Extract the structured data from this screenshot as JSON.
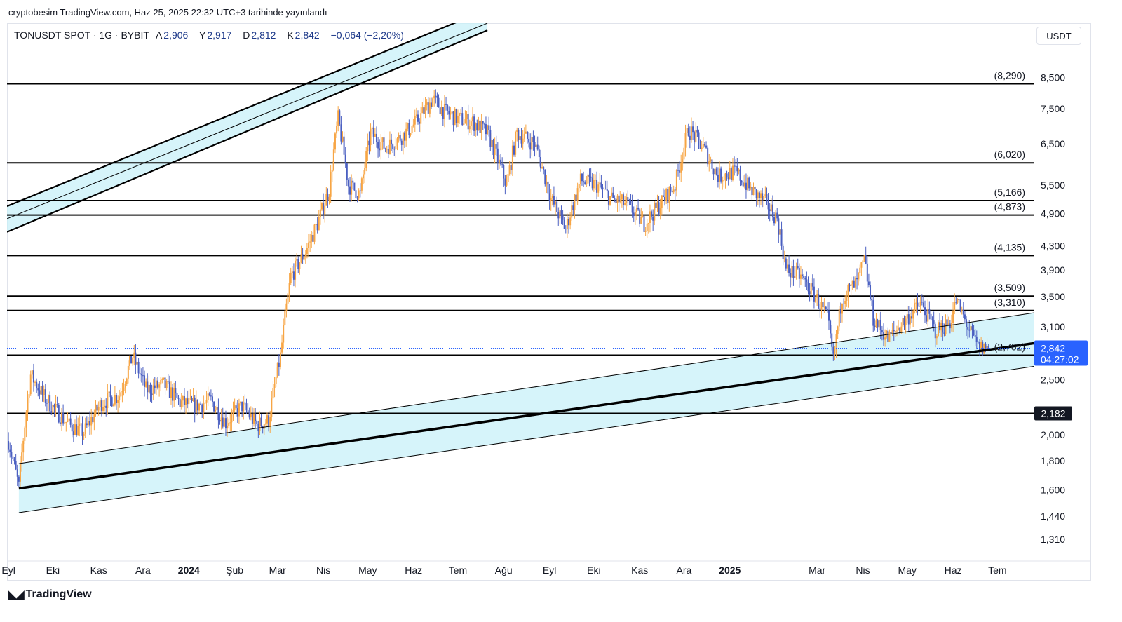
{
  "published": "cryptobesim TradingView.com, Haz 25, 2025 22:32 UTC+3 tarihinde yayınlandı",
  "header": {
    "symbol": "TONUSDT SPOT · 1G · BYBIT",
    "open_label": "A",
    "open": "2,906",
    "high_label": "Y",
    "high": "2,917",
    "low_label": "D",
    "low": "2,812",
    "close_label": "K",
    "close": "2,842",
    "change": "−0,064 (−2,20%)"
  },
  "currency": "USDT",
  "footer": {
    "brand": "TradingView"
  },
  "colors": {
    "up": "#f7a544",
    "down": "#4a5fc1",
    "channel": "#c8f0f8",
    "level": "#000000",
    "price_tag": "#2962ff"
  },
  "chart_data": {
    "type": "candlestick",
    "symbol": "TONUSDT",
    "y_scale": "log",
    "ylim": [
      1.2,
      10.6
    ],
    "y_ticks": [
      "8,500",
      "7,500",
      "6,500",
      "5,500",
      "4,900",
      "4,300",
      "3,900",
      "3,500",
      "3,100",
      "2,500",
      "2,000",
      "1,800",
      "1,600",
      "1,440",
      "1,310"
    ],
    "y_tick_values": [
      8.5,
      7.5,
      6.5,
      5.5,
      4.9,
      4.3,
      3.9,
      3.5,
      3.1,
      2.5,
      2.0,
      1.8,
      1.6,
      1.44,
      1.31
    ],
    "x_ticks": [
      "Eyl",
      "Eki",
      "Kas",
      "Ara",
      "2024",
      "Şub",
      "Mar",
      "Nis",
      "May",
      "Haz",
      "Tem",
      "Ağu",
      "Eyl",
      "Eki",
      "Kas",
      "Ara",
      "2025",
      "Mar",
      "Nis",
      "May",
      "Haz",
      "Tem"
    ],
    "x_tick_dates": [
      "2023-09-01",
      "2023-10-01",
      "2023-11-01",
      "2023-12-01",
      "2024-01-01",
      "2024-02-01",
      "2024-03-01",
      "2024-04-01",
      "2024-05-01",
      "2024-06-01",
      "2024-07-01",
      "2024-08-01",
      "2024-09-01",
      "2024-10-01",
      "2024-11-01",
      "2024-12-01",
      "2025-01-01",
      "2025-03-01",
      "2025-04-01",
      "2025-05-01",
      "2025-06-01",
      "2025-07-01"
    ],
    "x_range": [
      "2023-08-31",
      "2025-07-26"
    ],
    "levels": [
      {
        "label": "(8,290)",
        "value": 8.29
      },
      {
        "label": "(6,020)",
        "value": 6.02
      },
      {
        "label": "(5,166)",
        "value": 5.166
      },
      {
        "label": "(4,873)",
        "value": 4.873
      },
      {
        "label": "(4,135)",
        "value": 4.135
      },
      {
        "label": "(3,509)",
        "value": 3.509
      },
      {
        "label": "(3,310)",
        "value": 3.31
      },
      {
        "label": "(2,762)",
        "value": 2.762
      },
      {
        "label": "2,182",
        "value": 2.182
      }
    ],
    "last_price": "2,842",
    "last_price_value": 2.842,
    "countdown": "04:27:02",
    "price_path": [
      [
        "2023-09-01",
        1.95
      ],
      [
        "2023-09-08",
        1.62
      ],
      [
        "2023-09-16",
        2.55
      ],
      [
        "2023-09-24",
        2.35
      ],
      [
        "2023-10-02",
        2.22
      ],
      [
        "2023-10-12",
        2.08
      ],
      [
        "2023-10-22",
        2.02
      ],
      [
        "2023-11-03",
        2.28
      ],
      [
        "2023-11-15",
        2.35
      ],
      [
        "2023-11-24",
        2.75
      ],
      [
        "2023-12-03",
        2.4
      ],
      [
        "2023-12-15",
        2.45
      ],
      [
        "2023-12-26",
        2.28
      ],
      [
        "2024-01-06",
        2.25
      ],
      [
        "2024-01-16",
        2.3
      ],
      [
        "2024-01-26",
        2.1
      ],
      [
        "2024-02-06",
        2.25
      ],
      [
        "2024-02-16",
        2.08
      ],
      [
        "2024-02-24",
        2.12
      ],
      [
        "2024-03-03",
        2.75
      ],
      [
        "2024-03-10",
        3.8
      ],
      [
        "2024-03-20",
        4.2
      ],
      [
        "2024-03-28",
        4.7
      ],
      [
        "2024-04-05",
        5.4
      ],
      [
        "2024-04-11",
        7.2
      ],
      [
        "2024-04-18",
        5.5
      ],
      [
        "2024-04-26",
        5.3
      ],
      [
        "2024-05-03",
        6.8
      ],
      [
        "2024-05-13",
        6.4
      ],
      [
        "2024-05-24",
        6.7
      ],
      [
        "2024-06-03",
        7.1
      ],
      [
        "2024-06-14",
        7.8
      ],
      [
        "2024-06-22",
        7.4
      ],
      [
        "2024-07-01",
        7.2
      ],
      [
        "2024-07-11",
        7.1
      ],
      [
        "2024-07-21",
        6.8
      ],
      [
        "2024-08-03",
        5.5
      ],
      [
        "2024-08-10",
        6.8
      ],
      [
        "2024-08-22",
        6.5
      ],
      [
        "2024-09-02",
        5.2
      ],
      [
        "2024-09-12",
        4.6
      ],
      [
        "2024-09-22",
        5.6
      ],
      [
        "2024-10-03",
        5.5
      ],
      [
        "2024-10-13",
        5.2
      ],
      [
        "2024-10-23",
        5.1
      ],
      [
        "2024-11-04",
        4.7
      ],
      [
        "2024-11-15",
        5.1
      ],
      [
        "2024-11-25",
        5.5
      ],
      [
        "2024-12-04",
        6.9
      ],
      [
        "2024-12-14",
        6.4
      ],
      [
        "2024-12-24",
        5.7
      ],
      [
        "2025-01-05",
        5.8
      ],
      [
        "2025-01-15",
        5.4
      ],
      [
        "2025-01-26",
        5.1
      ],
      [
        "2025-02-02",
        4.8
      ],
      [
        "2025-02-08",
        3.9
      ],
      [
        "2025-02-18",
        3.8
      ],
      [
        "2025-02-28",
        3.5
      ],
      [
        "2025-03-08",
        3.2
      ],
      [
        "2025-03-12",
        2.7
      ],
      [
        "2025-03-18",
        3.5
      ],
      [
        "2025-03-28",
        3.7
      ],
      [
        "2025-04-02",
        4.05
      ],
      [
        "2025-04-08",
        3.2
      ],
      [
        "2025-04-18",
        2.95
      ],
      [
        "2025-04-28",
        3.15
      ],
      [
        "2025-05-10",
        3.4
      ],
      [
        "2025-05-20",
        3.05
      ],
      [
        "2025-05-30",
        3.15
      ],
      [
        "2025-06-03",
        3.45
      ],
      [
        "2025-06-12",
        3.05
      ],
      [
        "2025-06-18",
        2.85
      ],
      [
        "2025-06-25",
        2.84
      ]
    ],
    "channel": {
      "upper_line": [
        [
          "2023-09-08",
          1.78
        ],
        [
          "2025-07-26",
          3.28
        ]
      ],
      "mid_line": [
        [
          "2023-09-08",
          1.61
        ],
        [
          "2025-07-26",
          2.9
        ]
      ],
      "lower_line": [
        [
          "2023-09-08",
          1.46
        ],
        [
          "2025-07-26",
          2.64
        ]
      ]
    },
    "upper_channel": {
      "top_line": [
        [
          "2023-08-31",
          5.05
        ],
        [
          "2024-07-21",
          11.2
        ]
      ],
      "mid_line": [
        [
          "2023-08-31",
          4.8
        ],
        [
          "2024-07-21",
          10.6
        ]
      ],
      "bottom_line": [
        [
          "2023-08-31",
          4.55
        ],
        [
          "2024-07-21",
          10.3
        ]
      ]
    }
  }
}
